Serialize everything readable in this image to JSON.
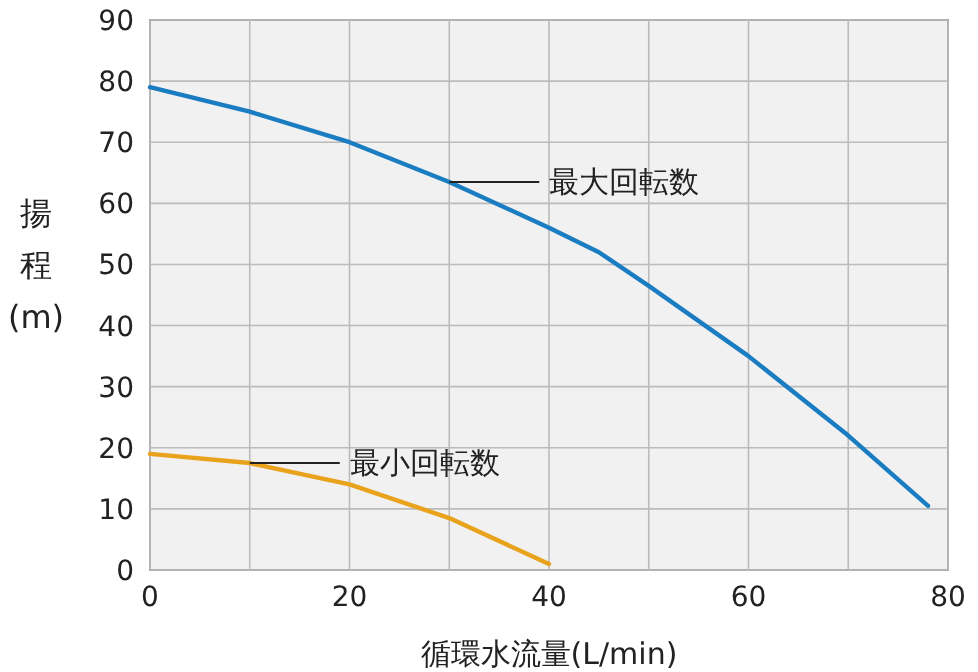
{
  "chart_data": {
    "type": "line",
    "xlabel": "循環水流量(L/min)",
    "ylabel": "揚程(m)",
    "xlim": [
      0,
      80
    ],
    "ylim": [
      0,
      90
    ],
    "xticks": [
      0,
      {
        "value": 10,
        "label": null
      },
      20,
      {
        "value": 30,
        "label": null
      },
      40,
      {
        "value": 50,
        "label": null
      },
      60,
      {
        "value": 70,
        "label": null
      },
      80
    ],
    "yticks": [
      0,
      10,
      20,
      30,
      40,
      50,
      60,
      70,
      80,
      90
    ],
    "grid": true,
    "marker": "none",
    "line_style": "solid",
    "series": [
      {
        "name": "最大回転数",
        "color": "#1a7cc1",
        "x": [
          0,
          10,
          20,
          30,
          40,
          45,
          50,
          60,
          70,
          78
        ],
        "values": [
          79,
          75,
          70,
          63.5,
          56,
          52,
          46.5,
          35,
          22,
          10.5
        ]
      },
      {
        "name": "最小回転数",
        "color": "#e8a21c",
        "x": [
          0,
          10,
          20,
          30,
          40
        ],
        "values": [
          19,
          17.5,
          14,
          8.5,
          1
        ]
      }
    ]
  }
}
